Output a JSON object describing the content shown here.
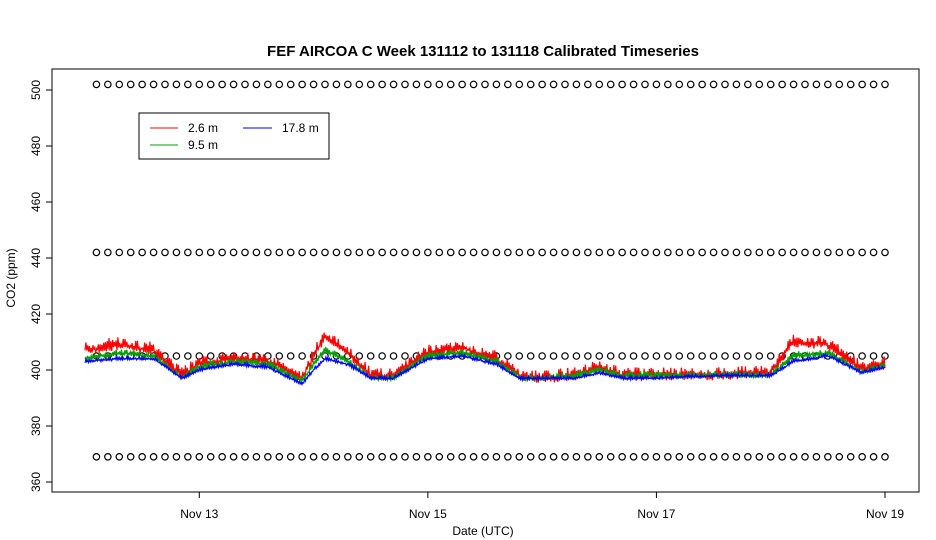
{
  "chart_data": {
    "type": "line",
    "title": "FEF AIRCOA C  Week 131112 to 131118  Calibrated Timeseries",
    "xlabel": "Date (UTC)",
    "ylabel": "CO2 (ppm)",
    "xlim": [
      12.0,
      19.0
    ],
    "ylim": [
      360,
      505
    ],
    "x_ticks": [
      {
        "value": 13,
        "label": "Nov 13"
      },
      {
        "value": 15,
        "label": "Nov 15"
      },
      {
        "value": 17,
        "label": "Nov 17"
      },
      {
        "value": 19,
        "label": "Nov 19"
      }
    ],
    "y_ticks": [
      360,
      380,
      400,
      420,
      440,
      460,
      480,
      500
    ],
    "grid": false,
    "legend_position": "top-left",
    "colors": {
      "s2_6": "#ff0000",
      "s9_5": "#00a000",
      "s17_8": "#0000ff",
      "ref": "#000000"
    },
    "series": [
      {
        "name": "2.6 m",
        "color": "#ff0000",
        "x": [
          12.0,
          12.3,
          12.6,
          12.85,
          13.0,
          13.3,
          13.6,
          13.9,
          14.0,
          14.1,
          14.3,
          14.5,
          14.7,
          15.0,
          15.3,
          15.6,
          15.8,
          16.0,
          16.3,
          16.5,
          16.7,
          17.0,
          17.5,
          18.0,
          18.2,
          18.5,
          18.8,
          19.0
        ],
        "y": [
          407,
          409,
          407,
          398,
          402,
          404,
          403,
          397,
          405,
          412,
          406,
          398,
          398,
          406,
          408,
          404,
          398,
          397,
          398,
          401,
          398,
          398,
          398,
          399,
          410,
          409,
          400,
          402
        ]
      },
      {
        "name": "9.5 m",
        "color": "#00a000",
        "x": [
          12.0,
          12.3,
          12.6,
          12.85,
          13.0,
          13.3,
          13.6,
          13.9,
          14.0,
          14.1,
          14.3,
          14.5,
          14.7,
          15.0,
          15.3,
          15.6,
          15.8,
          16.0,
          16.3,
          16.5,
          16.7,
          17.0,
          17.5,
          18.0,
          18.2,
          18.5,
          18.8,
          19.0
        ],
        "y": [
          404,
          406,
          405,
          397,
          401,
          403,
          402,
          396,
          402,
          407,
          403,
          397,
          397,
          405,
          406,
          403,
          397,
          397,
          398,
          400,
          398,
          398,
          398,
          398,
          405,
          406,
          399,
          402
        ]
      },
      {
        "name": "17.8 m",
        "color": "#0000ff",
        "x": [
          12.0,
          12.3,
          12.6,
          12.85,
          13.0,
          13.3,
          13.6,
          13.9,
          14.0,
          14.1,
          14.3,
          14.5,
          14.7,
          15.0,
          15.3,
          15.6,
          15.8,
          16.0,
          16.3,
          16.5,
          16.7,
          17.0,
          17.5,
          18.0,
          18.2,
          18.5,
          18.8,
          19.0
        ],
        "y": [
          403,
          404,
          404,
          397,
          400,
          402,
          401,
          395,
          400,
          404,
          402,
          397,
          397,
          404,
          405,
          402,
          397,
          397,
          397,
          399,
          397,
          397,
          398,
          398,
          403,
          405,
          399,
          401
        ]
      }
    ],
    "reference_markers": {
      "levels": [
        502,
        442,
        405,
        369
      ],
      "x_step": 0.1,
      "x_start": 12.1
    }
  }
}
